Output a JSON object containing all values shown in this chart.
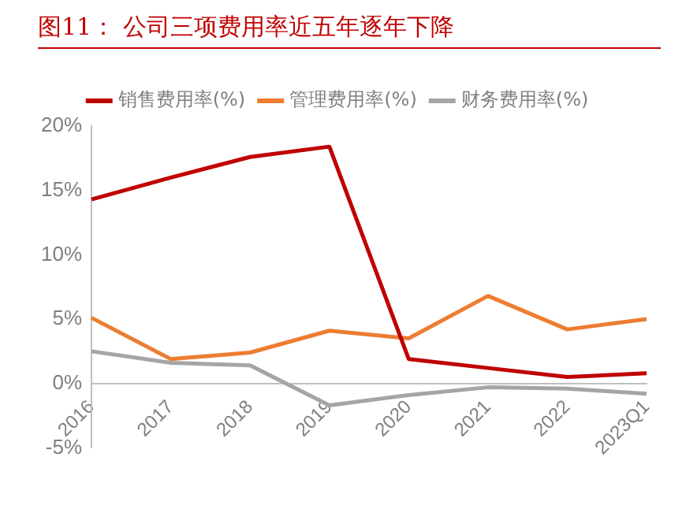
{
  "chart_data": {
    "type": "line",
    "title": "图11：  公司三项费用率近五年逐年下降",
    "categories": [
      "2016",
      "2017",
      "2018",
      "2019",
      "2020",
      "2021",
      "2022",
      "2023Q1"
    ],
    "series": [
      {
        "name": "销售费用率(%)",
        "color": "#c00000",
        "values": [
          14.3,
          16.0,
          17.6,
          18.4,
          1.9,
          1.2,
          0.5,
          0.8
        ]
      },
      {
        "name": "管理费用率(%)",
        "color": "#ed7d31",
        "values": [
          5.1,
          1.9,
          2.4,
          4.1,
          3.5,
          6.8,
          4.2,
          5.0
        ]
      },
      {
        "name": "财务费用率(%)",
        "color": "#a5a5a5",
        "values": [
          2.5,
          1.6,
          1.4,
          -1.7,
          -0.9,
          -0.3,
          -0.4,
          -0.8
        ]
      }
    ],
    "ylim": [
      -5,
      20
    ],
    "yticks": [
      {
        "value": -5,
        "label": "-5%"
      },
      {
        "value": 0,
        "label": "0%"
      },
      {
        "value": 5,
        "label": "5%"
      },
      {
        "value": 10,
        "label": "10%"
      },
      {
        "value": 15,
        "label": "15%"
      },
      {
        "value": 20,
        "label": "20%"
      }
    ],
    "grid": false,
    "legend": "top",
    "marker": "none",
    "line_style": "solid"
  }
}
